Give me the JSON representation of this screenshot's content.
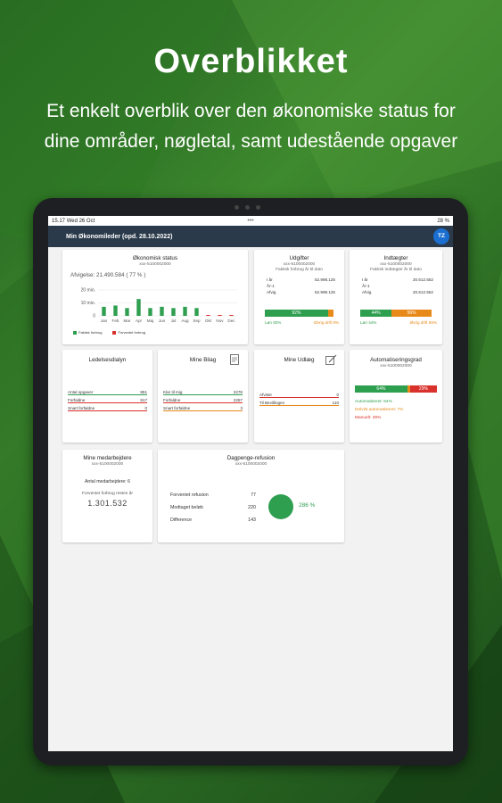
{
  "promo": {
    "headline": "Overblikket",
    "subtitle": "Et enkelt overblik over den økonomiske status for dine områder, nøgletal, samt udestående opgaver"
  },
  "colors": {
    "green": "#2e9e4f",
    "red": "#d9312b",
    "orange": "#e88a1a",
    "appbar": "#2b3a4a",
    "avatar": "#1a6fd0"
  },
  "statusbar": {
    "time": "15.17",
    "date": "Wed 26 Oct",
    "dots": "•••",
    "right": "28 %"
  },
  "appbar": {
    "title": "Min Økonomileder (opd. 28.10.2022)",
    "avatar": "TZ"
  },
  "okonomisk": {
    "title": "Økonomisk status",
    "subtitle": "xxx-5100002000",
    "afvigelse": "Afvigelse: 21.490.584 ( 77 % )",
    "legend_faktisk": "Faktisk forbrug",
    "legend_forventet": "Forventet forbrug"
  },
  "chart_data": {
    "type": "bar",
    "categories": [
      "Jan",
      "Feb",
      "Mar",
      "Apr",
      "Maj",
      "Jun",
      "Jul",
      "Aug",
      "Sep",
      "Okt",
      "Nov",
      "Dec"
    ],
    "y_ticks": [
      "20 mio.",
      "10 mio.",
      "0"
    ],
    "ylim": [
      0,
      20
    ],
    "series": [
      {
        "name": "Faktisk forbrug",
        "color": "#2e9e4f",
        "values": [
          7,
          8,
          6,
          13,
          6,
          7,
          6,
          7,
          6,
          0,
          0,
          0
        ]
      },
      {
        "name": "Forventet forbrug",
        "color": "#d9312b",
        "values": [
          0,
          0,
          0,
          0,
          0,
          0,
          0,
          0,
          0,
          0.7,
          0.7,
          0.7
        ]
      }
    ]
  },
  "udgifter": {
    "title": "Udgifter",
    "subtitle": "xxx-5100002000",
    "caption": "Faktisk forbrug år til dato",
    "rows": [
      {
        "label": "I år",
        "value": "52.998.125"
      },
      {
        "label": "År-1",
        "value": ""
      },
      {
        "label": "Afvig.",
        "value": "52.998.125"
      }
    ],
    "bar_label": "92%",
    "bar_fill": 0.92,
    "lon": "Løn 92%",
    "drift": "Øvrig drift 8%"
  },
  "indtaegter": {
    "title": "Indtægter",
    "subtitle": "xxx-5100002000",
    "caption": "Faktisk indtægter år til dato",
    "rows": [
      {
        "label": "I år",
        "value": "20.612.552"
      },
      {
        "label": "År-1",
        "value": ""
      },
      {
        "label": "Afvig.",
        "value": "20.612.552"
      }
    ],
    "bar_left": "44%",
    "bar_right": "56%",
    "bar_fill": 0.44,
    "lon": "Løn 44%",
    "drift": "Øvrig drift 56%"
  },
  "ledelse": {
    "title": "Ledelsesdialyn",
    "rows": [
      {
        "label": "Antal opgaver",
        "value": "851"
      },
      {
        "label": "Forfaldne",
        "value": "817"
      },
      {
        "label": "Snart forfaldne",
        "value": "0"
      }
    ]
  },
  "bilag": {
    "title": "Mine Bilag",
    "rows": [
      {
        "label": "Klar til mig",
        "value": "2278"
      },
      {
        "label": "Forfaldne",
        "value": "2257"
      },
      {
        "label": "Snart forfaldne",
        "value": "3"
      }
    ]
  },
  "udlaeg": {
    "title": "Mine Udlæg",
    "rows": [
      {
        "label": "Afviste",
        "value": "0"
      },
      {
        "label": "Til Bevillingen",
        "value": "110"
      }
    ]
  },
  "automatisering": {
    "title": "Automatiseringsgrad",
    "subtitle": "xxx-5100002000",
    "bar_left": "64%",
    "bar_right": "29%",
    "bar_fill": 0.64,
    "automatiseret": "Automatiseret: 64%",
    "delvist": "Delvist automatiseret: 7%",
    "manuelt": "Manuelt: 29%"
  },
  "medarbejdere": {
    "title": "Mine medarbejdere",
    "subtitle": "xxx-5100002000",
    "antal": "Antal medarbejdere: 6",
    "forventet_label": "Forventet forbrug resten år",
    "forventet_value": "1.301.532"
  },
  "dagpenge": {
    "title": "Dagpenge-refusion",
    "subtitle": "xxx-5100002000",
    "rows": [
      {
        "label": "Forventet refusion",
        "value": "77"
      },
      {
        "label": "Modtaget beløb",
        "value": "220"
      },
      {
        "label": "Difference",
        "value": "143"
      }
    ],
    "percent": "286 %"
  }
}
